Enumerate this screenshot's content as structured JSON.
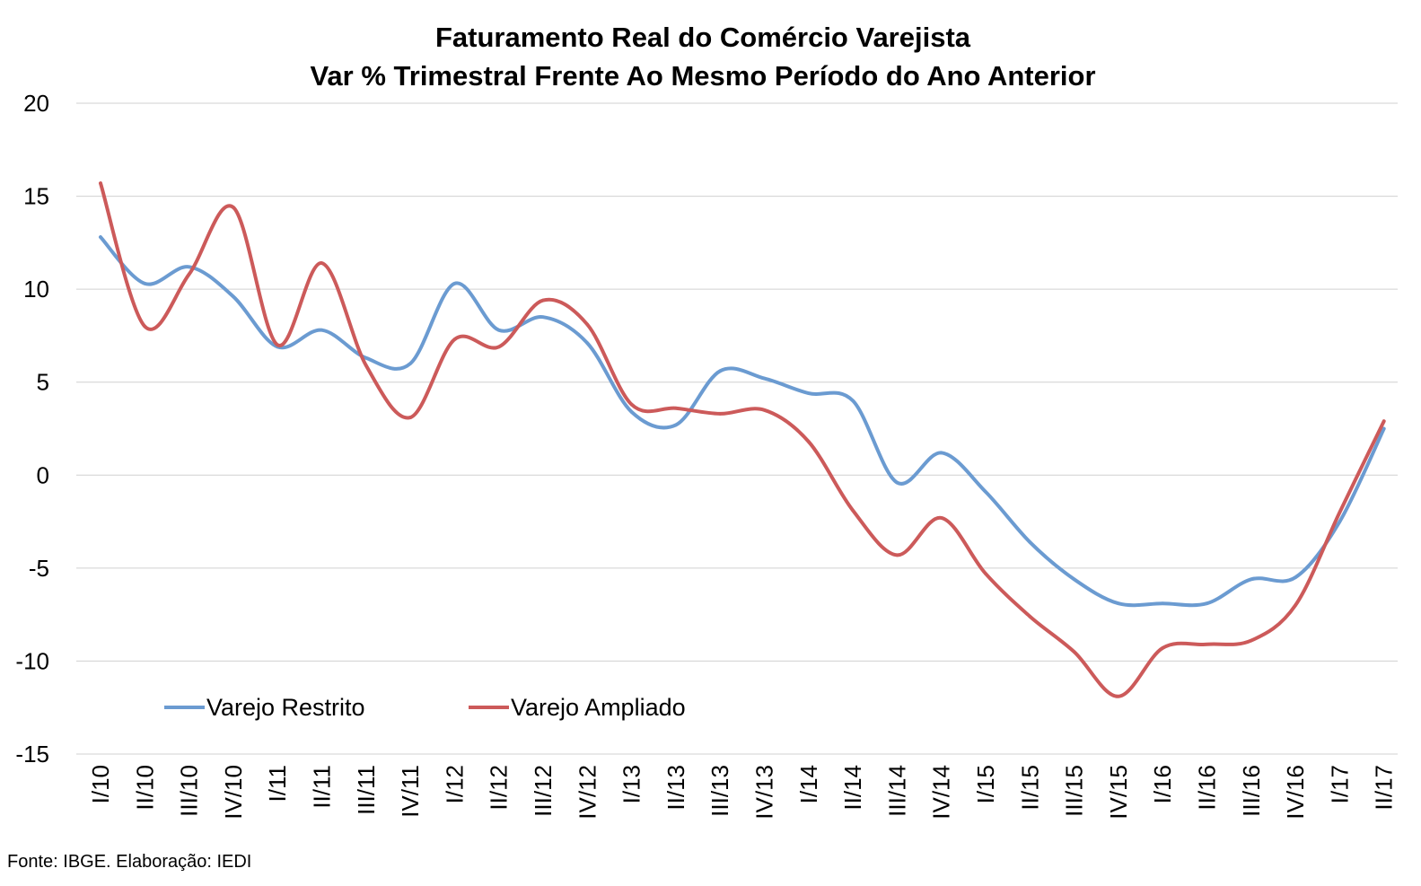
{
  "chart_data": {
    "type": "line",
    "title": "Faturamento Real do Comércio Varejista",
    "subtitle": "Var % Trimestral Frente Ao Mesmo Período do Ano Anterior",
    "xlabel": "",
    "ylabel": "",
    "ylim": [
      -15,
      20
    ],
    "yticks": [
      20,
      15,
      10,
      5,
      0,
      -5,
      -10,
      -15
    ],
    "grid": true,
    "legend_position": "bottom-left",
    "categories": [
      "I/10",
      "II/10",
      "III/10",
      "IV/10",
      "I/11",
      "II/11",
      "III/11",
      "IV/11",
      "I/12",
      "II/12",
      "III/12",
      "IV/12",
      "I/13",
      "II/13",
      "III/13",
      "IV/13",
      "I/14",
      "II/14",
      "III/14",
      "IV/14",
      "I/15",
      "II/15",
      "III/15",
      "IV/15",
      "I/16",
      "II/16",
      "III/16",
      "IV/16",
      "I/17",
      "II/17"
    ],
    "series": [
      {
        "name": "Varejo Restrito",
        "color": "#6b9bd1",
        "values": [
          12.8,
          10.3,
          11.2,
          9.6,
          6.9,
          7.8,
          6.3,
          6.0,
          10.3,
          7.8,
          8.5,
          7.1,
          3.4,
          2.7,
          5.6,
          5.2,
          4.4,
          4.0,
          -0.4,
          1.2,
          -0.9,
          -3.6,
          -5.6,
          -6.9,
          -6.9,
          -6.9,
          -5.6,
          -5.5,
          -2.5,
          2.5
        ]
      },
      {
        "name": "Varejo Ampliado",
        "color": "#cc5a5a",
        "values": [
          15.7,
          8.0,
          10.8,
          14.4,
          7.0,
          11.4,
          5.9,
          3.1,
          7.3,
          6.9,
          9.4,
          8.1,
          3.8,
          3.6,
          3.3,
          3.5,
          1.8,
          -1.9,
          -4.3,
          -2.3,
          -5.3,
          -7.6,
          -9.5,
          -11.9,
          -9.3,
          -9.1,
          -8.9,
          -7.0,
          -2.0,
          2.9
        ]
      }
    ],
    "source": "Fonte: IBGE. Elaboração: IEDI"
  }
}
